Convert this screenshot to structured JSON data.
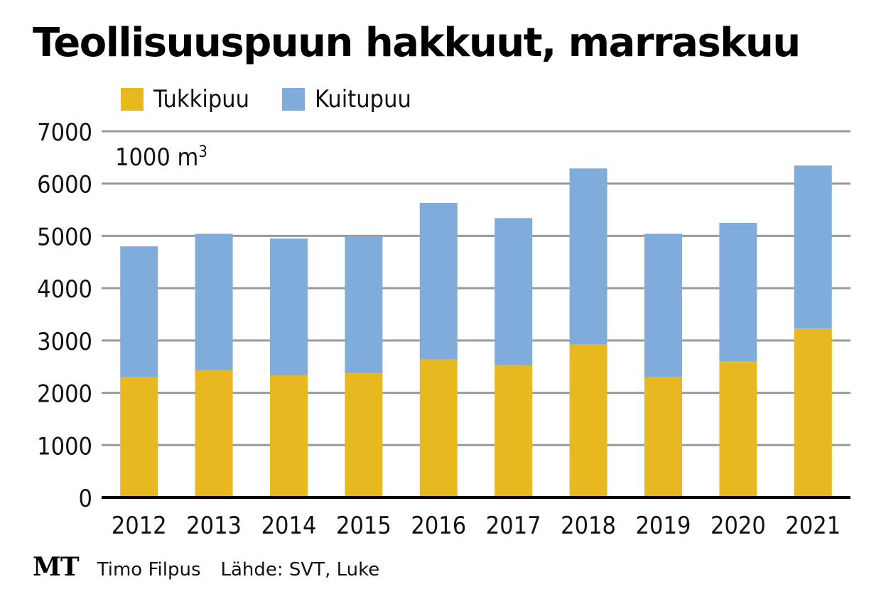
{
  "title": "Teollisuuspuun hakkuut, marraskuu",
  "legend": [
    {
      "label": "Tukkipuu",
      "color": "#e8b820"
    },
    {
      "label": "Kuitupuu",
      "color": "#80acdc"
    }
  ],
  "unit_label": "1000 m",
  "unit_sup": "3",
  "footer": {
    "logo": "MT",
    "author": "Timo Filpus",
    "source": "Lähde: SVT, Luke"
  },
  "chart_data": {
    "type": "bar",
    "stacked": true,
    "title": "Teollisuuspuun hakkuut, marraskuu",
    "xlabel": "",
    "ylabel": "1000 m3",
    "ylim": [
      0,
      7000
    ],
    "yticks": [
      0,
      1000,
      2000,
      3000,
      4000,
      5000,
      6000,
      7000
    ],
    "ytick_labels": [
      "0",
      "1000",
      "2000",
      "3000",
      "4000",
      "5000",
      "6000",
      "7000"
    ],
    "grid": true,
    "legend_position": "top-left",
    "categories": [
      "2012",
      "2013",
      "2014",
      "2015",
      "2016",
      "2017",
      "2018",
      "2019",
      "2020",
      "2021"
    ],
    "series": [
      {
        "name": "Tukkipuu",
        "color": "#e8b820",
        "values": [
          2300,
          2430,
          2340,
          2380,
          2640,
          2530,
          2930,
          2300,
          2600,
          3230
        ]
      },
      {
        "name": "Kuitupuu",
        "color": "#80acdc",
        "values": [
          2500,
          2610,
          2610,
          2610,
          2990,
          2810,
          3360,
          2740,
          2650,
          3115
        ]
      }
    ]
  }
}
